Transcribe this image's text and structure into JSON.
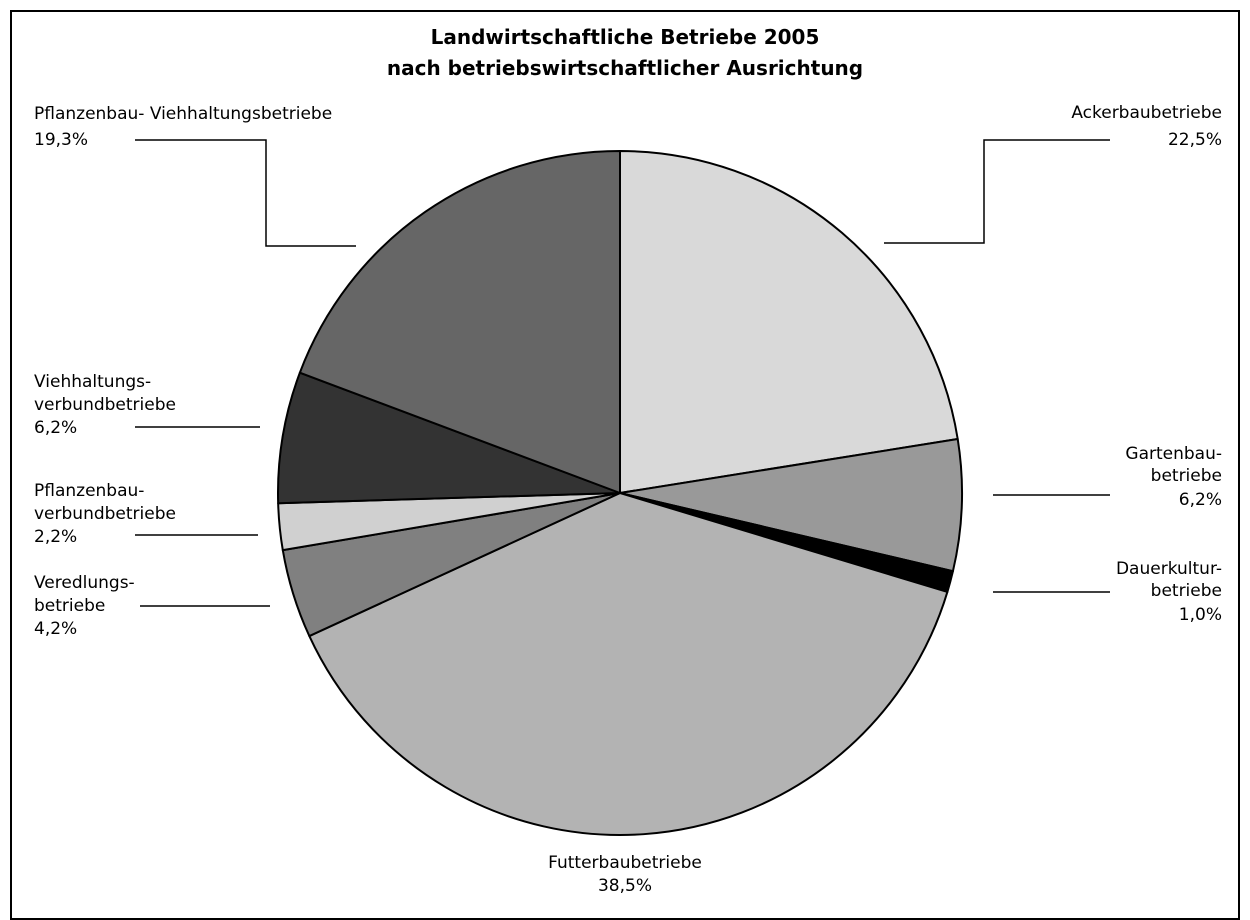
{
  "chart_data": {
    "type": "pie",
    "title_line1": "Landwirtschaftliche Betriebe 2005",
    "title_line2": "nach betriebswirtschaftlicher Ausrichtung",
    "slices": [
      {
        "label": "Ackerbaubetriebe",
        "value": 22.5,
        "value_text": "22,5%",
        "color": "#d9d9d9"
      },
      {
        "label": "Gartenbaubetriebe",
        "value": 6.2,
        "value_text": "6,2%",
        "color": "#999999"
      },
      {
        "label": "Dauerkulturbetriebe",
        "value": 1.0,
        "value_text": "1,0%",
        "color": "#000000"
      },
      {
        "label": "Futterbaubetriebe",
        "value": 38.5,
        "value_text": "38,5%",
        "color": "#b3b3b3"
      },
      {
        "label": "Veredlungsbetriebe",
        "value": 4.2,
        "value_text": "4,2%",
        "color": "#808080"
      },
      {
        "label": "Pflanzenbauverbundbetriebe",
        "value": 2.2,
        "value_text": "2,2%",
        "color": "#d0d0d0"
      },
      {
        "label": "Viehhaltungsverbundbetriebe",
        "value": 6.2,
        "value_text": "6,2%",
        "color": "#333333"
      },
      {
        "label": "Pflanzenbau- Viehhaltungsbetriebe",
        "value": 19.3,
        "value_text": "19,3%",
        "color": "#666666"
      }
    ],
    "labels": {
      "acker_1": "Ackerbaubetriebe",
      "garten_1": "Gartenbau-",
      "garten_2": "betriebe",
      "dauer_1": "Dauerkultur-",
      "dauer_2": "betriebe",
      "futter_1": "Futterbaubetriebe",
      "vered_1": "Veredlungs-",
      "vered_2": "betriebe",
      "pflverb_1": "Pflanzenbau-",
      "pflverb_2": "verbundbetriebe",
      "viehverb_1": "Viehhaltungs-",
      "viehverb_2": "verbundbetriebe",
      "pflvieh_1": "Pflanzenbau- Viehhaltungsbetriebe"
    }
  }
}
